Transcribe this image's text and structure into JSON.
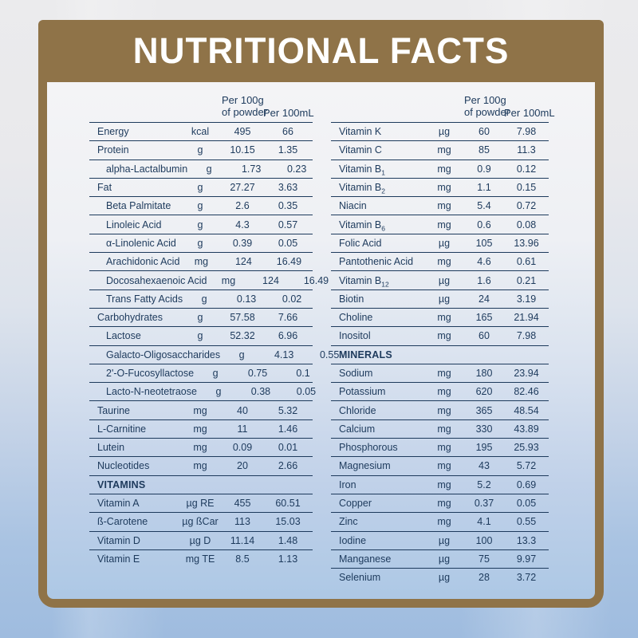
{
  "title": "NUTRITIONAL FACTS",
  "column_headers": {
    "per_100g_line1": "Per 100g",
    "per_100g_line2": "of powder",
    "per_100ml": "Per 100mL"
  },
  "colors": {
    "frame_brown": "#8F7348",
    "text_navy": "#1D3A5C",
    "title_white": "#FFFFFF",
    "background_blue": "#A9C3E2"
  },
  "tables": [
    {
      "rows": [
        {
          "label": "Energy",
          "unit": "kcal",
          "per_100g": "495",
          "per_100ml": "66"
        },
        {
          "label": "Protein",
          "unit": "g",
          "per_100g": "10.15",
          "per_100ml": "1.35"
        },
        {
          "label": "alpha-Lactalbumin",
          "unit": "g",
          "per_100g": "1.73",
          "per_100ml": "0.23",
          "indent": true
        },
        {
          "label": "Fat",
          "unit": "g",
          "per_100g": "27.27",
          "per_100ml": "3.63"
        },
        {
          "label": "Beta Palmitate",
          "unit": "g",
          "per_100g": "2.6",
          "per_100ml": "0.35",
          "indent": true
        },
        {
          "label": "Linoleic Acid",
          "unit": "g",
          "per_100g": "4.3",
          "per_100ml": "0.57",
          "indent": true
        },
        {
          "label": "α-Linolenic Acid",
          "unit": "g",
          "per_100g": "0.39",
          "per_100ml": "0.05",
          "indent": true
        },
        {
          "label": "Arachidonic Acid",
          "unit": "mg",
          "per_100g": "124",
          "per_100ml": "16.49",
          "indent": true
        },
        {
          "label": "Docosahexaenoic Acid",
          "unit": "mg",
          "per_100g": "124",
          "per_100ml": "16.49",
          "indent": true
        },
        {
          "label": "Trans Fatty Acids",
          "unit": "g",
          "per_100g": "0.13",
          "per_100ml": "0.02",
          "indent": true
        },
        {
          "label": "Carbohydrates",
          "unit": "g",
          "per_100g": "57.58",
          "per_100ml": "7.66"
        },
        {
          "label": "Lactose",
          "unit": "g",
          "per_100g": "52.32",
          "per_100ml": "6.96",
          "indent": true
        },
        {
          "label": "Galacto-Oligosaccharides",
          "unit": "g",
          "per_100g": "4.13",
          "per_100ml": "0.55",
          "indent": true
        },
        {
          "label": "2'-O-Fucosyllactose",
          "unit": "g",
          "per_100g": "0.75",
          "per_100ml": "0.1",
          "indent": true
        },
        {
          "label": "Lacto-N-neotetraose",
          "unit": "g",
          "per_100g": "0.38",
          "per_100ml": "0.05",
          "indent": true
        },
        {
          "label": "Taurine",
          "unit": "mg",
          "per_100g": "40",
          "per_100ml": "5.32"
        },
        {
          "label": "L-Carnitine",
          "unit": "mg",
          "per_100g": "11",
          "per_100ml": "1.46"
        },
        {
          "label": "Lutein",
          "unit": "mg",
          "per_100g": "0.09",
          "per_100ml": "0.01"
        },
        {
          "label": "Nucleotides",
          "unit": "mg",
          "per_100g": "20",
          "per_100ml": "2.66"
        },
        {
          "section": "VITAMINS"
        },
        {
          "label": "Vitamin A",
          "unit": "µg RE",
          "per_100g": "455",
          "per_100ml": "60.51"
        },
        {
          "label": "ß-Carotene",
          "unit": "µg ßCar",
          "per_100g": "113",
          "per_100ml": "15.03"
        },
        {
          "label": "Vitamin D",
          "unit": "µg D",
          "per_100g": "11.14",
          "per_100ml": "1.48"
        },
        {
          "label": "Vitamin E",
          "unit": "mg TE",
          "per_100g": "8.5",
          "per_100ml": "1.13"
        }
      ]
    },
    {
      "rows": [
        {
          "label": "Vitamin K",
          "unit": "µg",
          "per_100g": "60",
          "per_100ml": "7.98"
        },
        {
          "label": "Vitamin C",
          "unit": "mg",
          "per_100g": "85",
          "per_100ml": "11.3"
        },
        {
          "label": "Vitamin B",
          "sub": "1",
          "unit": "mg",
          "per_100g": "0.9",
          "per_100ml": "0.12"
        },
        {
          "label": "Vitamin B",
          "sub": "2",
          "unit": "mg",
          "per_100g": "1.1",
          "per_100ml": "0.15"
        },
        {
          "label": "Niacin",
          "unit": "mg",
          "per_100g": "5.4",
          "per_100ml": "0.72"
        },
        {
          "label": "Vitamin B",
          "sub": "6",
          "unit": "mg",
          "per_100g": "0.6",
          "per_100ml": "0.08"
        },
        {
          "label": "Folic Acid",
          "unit": "µg",
          "per_100g": "105",
          "per_100ml": "13.96"
        },
        {
          "label": "Pantothenic Acid",
          "unit": "mg",
          "per_100g": "4.6",
          "per_100ml": "0.61"
        },
        {
          "label": "Vitamin B",
          "sub": "12",
          "unit": "µg",
          "per_100g": "1.6",
          "per_100ml": "0.21"
        },
        {
          "label": "Biotin",
          "unit": "µg",
          "per_100g": "24",
          "per_100ml": "3.19"
        },
        {
          "label": "Choline",
          "unit": "mg",
          "per_100g": "165",
          "per_100ml": "21.94"
        },
        {
          "label": "Inositol",
          "unit": "mg",
          "per_100g": "60",
          "per_100ml": "7.98"
        },
        {
          "section": "MINERALS"
        },
        {
          "label": "Sodium",
          "unit": "mg",
          "per_100g": "180",
          "per_100ml": "23.94"
        },
        {
          "label": "Potassium",
          "unit": "mg",
          "per_100g": "620",
          "per_100ml": "82.46"
        },
        {
          "label": "Chloride",
          "unit": "mg",
          "per_100g": "365",
          "per_100ml": "48.54"
        },
        {
          "label": "Calcium",
          "unit": "mg",
          "per_100g": "330",
          "per_100ml": "43.89"
        },
        {
          "label": "Phosphorous",
          "unit": "mg",
          "per_100g": "195",
          "per_100ml": "25.93"
        },
        {
          "label": "Magnesium",
          "unit": "mg",
          "per_100g": "43",
          "per_100ml": "5.72"
        },
        {
          "label": "Iron",
          "unit": "mg",
          "per_100g": "5.2",
          "per_100ml": "0.69"
        },
        {
          "label": "Copper",
          "unit": "mg",
          "per_100g": "0.37",
          "per_100ml": "0.05"
        },
        {
          "label": "Zinc",
          "unit": "mg",
          "per_100g": "4.1",
          "per_100ml": "0.55"
        },
        {
          "label": "Iodine",
          "unit": "µg",
          "per_100g": "100",
          "per_100ml": "13.3"
        },
        {
          "label": "Manganese",
          "unit": "µg",
          "per_100g": "75",
          "per_100ml": "9.97"
        },
        {
          "label": "Selenium",
          "unit": "µg",
          "per_100g": "28",
          "per_100ml": "3.72"
        }
      ]
    }
  ]
}
